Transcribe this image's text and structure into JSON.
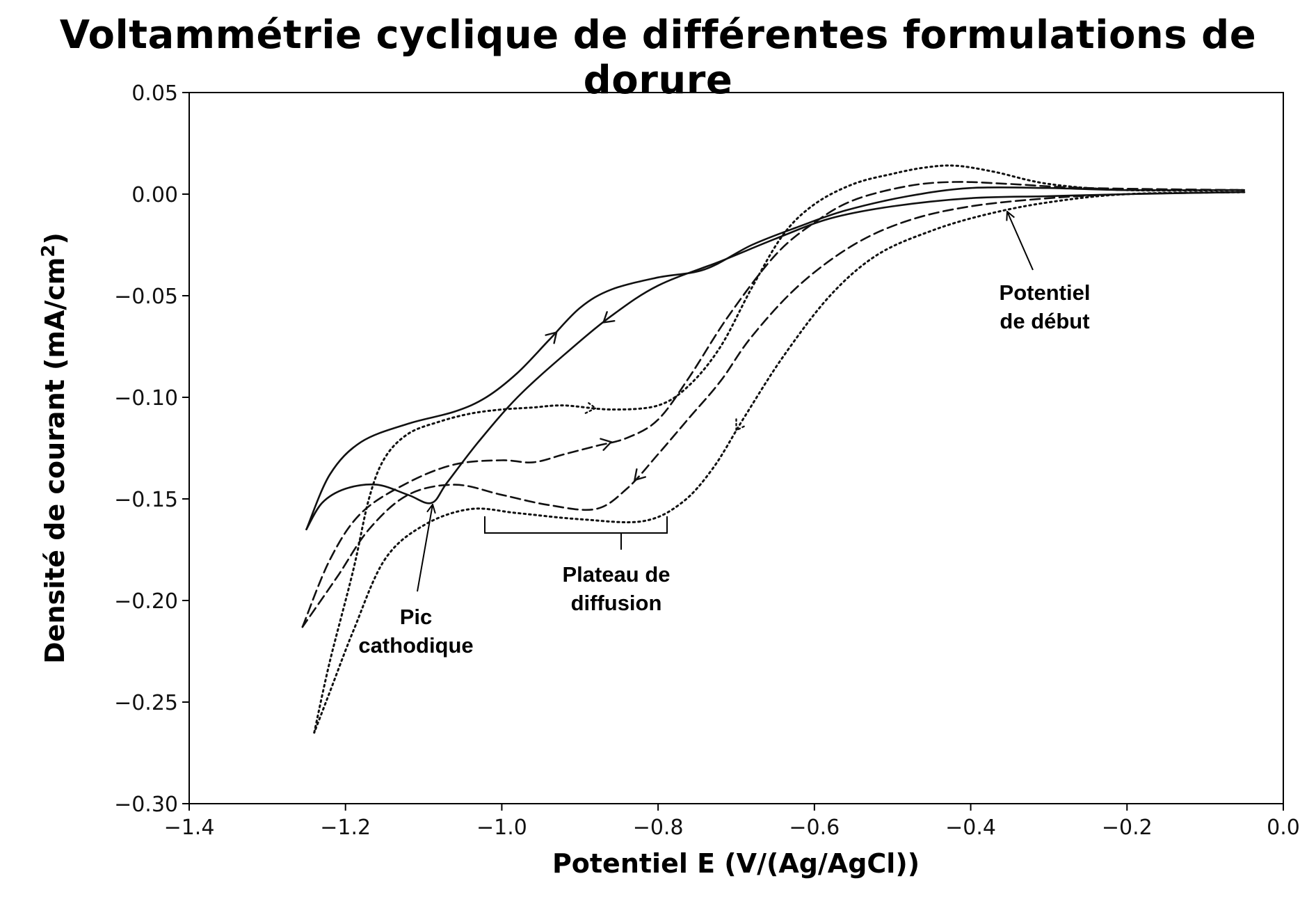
{
  "chart_data": {
    "type": "line",
    "title": "Voltammétrie cyclique de différentes formulations de dorure",
    "xlabel": "Potentiel E (V/(Ag/AgCl))",
    "ylabel_main": "Densité de courant  (mA/cm",
    "ylabel_sup": "2",
    "ylabel_end": ")",
    "xlim": [
      -1.4,
      0.0
    ],
    "ylim": [
      -0.3,
      0.05
    ],
    "x_ticks": [
      -1.4,
      -1.2,
      -1.0,
      -0.8,
      -0.6,
      -0.4,
      -0.2,
      0.0
    ],
    "x_tick_labels": [
      "−1.4",
      "−1.2",
      "−1.0",
      "−0.8",
      "−0.6",
      "−0.4",
      "−0.2",
      "0.0"
    ],
    "y_ticks": [
      0.05,
      0.0,
      -0.05,
      -0.1,
      -0.15,
      -0.2,
      -0.25,
      -0.3
    ],
    "y_tick_labels": [
      "0.05",
      "0.00",
      "−0.05",
      "−0.10",
      "−0.15",
      "−0.20",
      "−0.25",
      "−0.30"
    ],
    "grid": false,
    "legend": "none",
    "series": [
      {
        "style": "solid",
        "forward": [
          [
            -0.05,
            0.001
          ],
          [
            -0.2,
            0.0
          ],
          [
            -0.3,
            -0.001
          ],
          [
            -0.4,
            -0.002
          ],
          [
            -0.5,
            -0.006
          ],
          [
            -0.58,
            -0.012
          ],
          [
            -0.65,
            -0.022
          ],
          [
            -0.72,
            -0.033
          ],
          [
            -0.8,
            -0.045
          ],
          [
            -0.86,
            -0.06
          ],
          [
            -0.92,
            -0.079
          ],
          [
            -0.98,
            -0.1
          ],
          [
            -1.03,
            -0.122
          ],
          [
            -1.07,
            -0.142
          ],
          [
            -1.09,
            -0.152
          ],
          [
            -1.12,
            -0.148
          ],
          [
            -1.16,
            -0.143
          ],
          [
            -1.2,
            -0.145
          ],
          [
            -1.23,
            -0.152
          ],
          [
            -1.25,
            -0.165
          ]
        ],
        "reverse": [
          [
            -1.25,
            -0.165
          ],
          [
            -1.22,
            -0.138
          ],
          [
            -1.18,
            -0.122
          ],
          [
            -1.12,
            -0.113
          ],
          [
            -1.06,
            -0.107
          ],
          [
            -1.02,
            -0.1
          ],
          [
            -0.98,
            -0.088
          ],
          [
            -0.94,
            -0.072
          ],
          [
            -0.9,
            -0.056
          ],
          [
            -0.86,
            -0.047
          ],
          [
            -0.8,
            -0.041
          ],
          [
            -0.74,
            -0.037
          ],
          [
            -0.68,
            -0.025
          ],
          [
            -0.62,
            -0.016
          ],
          [
            -0.56,
            -0.008
          ],
          [
            -0.48,
            -0.001
          ],
          [
            -0.4,
            0.003
          ],
          [
            -0.3,
            0.003
          ],
          [
            -0.2,
            0.002
          ],
          [
            -0.05,
            0.002
          ]
        ]
      },
      {
        "style": "dashed",
        "forward": [
          [
            -0.05,
            0.001
          ],
          [
            -0.2,
            0.0
          ],
          [
            -0.3,
            -0.002
          ],
          [
            -0.4,
            -0.006
          ],
          [
            -0.48,
            -0.013
          ],
          [
            -0.55,
            -0.025
          ],
          [
            -0.62,
            -0.045
          ],
          [
            -0.68,
            -0.07
          ],
          [
            -0.72,
            -0.092
          ],
          [
            -0.76,
            -0.11
          ],
          [
            -0.8,
            -0.128
          ],
          [
            -0.84,
            -0.145
          ],
          [
            -0.88,
            -0.155
          ],
          [
            -0.94,
            -0.153
          ],
          [
            -1.0,
            -0.148
          ],
          [
            -1.06,
            -0.143
          ],
          [
            -1.12,
            -0.148
          ],
          [
            -1.17,
            -0.165
          ],
          [
            -1.21,
            -0.188
          ],
          [
            -1.255,
            -0.213
          ]
        ],
        "reverse": [
          [
            -1.255,
            -0.213
          ],
          [
            -1.22,
            -0.18
          ],
          [
            -1.18,
            -0.157
          ],
          [
            -1.12,
            -0.142
          ],
          [
            -1.06,
            -0.133
          ],
          [
            -1.0,
            -0.131
          ],
          [
            -0.96,
            -0.132
          ],
          [
            -0.92,
            -0.128
          ],
          [
            -0.88,
            -0.124
          ],
          [
            -0.84,
            -0.12
          ],
          [
            -0.8,
            -0.111
          ],
          [
            -0.76,
            -0.09
          ],
          [
            -0.71,
            -0.06
          ],
          [
            -0.65,
            -0.03
          ],
          [
            -0.6,
            -0.014
          ],
          [
            -0.55,
            -0.003
          ],
          [
            -0.48,
            0.004
          ],
          [
            -0.42,
            0.006
          ],
          [
            -0.35,
            0.005
          ],
          [
            -0.25,
            0.003
          ],
          [
            -0.05,
            0.002
          ]
        ]
      },
      {
        "style": "dotted",
        "forward": [
          [
            -0.05,
            0.001
          ],
          [
            -0.2,
            0.0
          ],
          [
            -0.3,
            -0.004
          ],
          [
            -0.38,
            -0.01
          ],
          [
            -0.45,
            -0.018
          ],
          [
            -0.52,
            -0.03
          ],
          [
            -0.58,
            -0.05
          ],
          [
            -0.64,
            -0.08
          ],
          [
            -0.69,
            -0.11
          ],
          [
            -0.73,
            -0.135
          ],
          [
            -0.77,
            -0.152
          ],
          [
            -0.82,
            -0.161
          ],
          [
            -0.9,
            -0.16
          ],
          [
            -0.98,
            -0.157
          ],
          [
            -1.04,
            -0.155
          ],
          [
            -1.1,
            -0.163
          ],
          [
            -1.15,
            -0.18
          ],
          [
            -1.19,
            -0.215
          ],
          [
            -1.22,
            -0.245
          ],
          [
            -1.24,
            -0.265
          ]
        ],
        "reverse": [
          [
            -1.24,
            -0.265
          ],
          [
            -1.22,
            -0.23
          ],
          [
            -1.19,
            -0.185
          ],
          [
            -1.17,
            -0.15
          ],
          [
            -1.15,
            -0.13
          ],
          [
            -1.12,
            -0.118
          ],
          [
            -1.08,
            -0.112
          ],
          [
            -1.04,
            -0.108
          ],
          [
            -1.0,
            -0.106
          ],
          [
            -0.96,
            -0.105
          ],
          [
            -0.92,
            -0.104
          ],
          [
            -0.86,
            -0.106
          ],
          [
            -0.8,
            -0.104
          ],
          [
            -0.76,
            -0.094
          ],
          [
            -0.72,
            -0.075
          ],
          [
            -0.68,
            -0.046
          ],
          [
            -0.64,
            -0.02
          ],
          [
            -0.6,
            -0.005
          ],
          [
            -0.55,
            0.005
          ],
          [
            -0.5,
            0.01
          ],
          [
            -0.46,
            0.013
          ],
          [
            -0.42,
            0.014
          ],
          [
            -0.37,
            0.011
          ],
          [
            -0.3,
            0.005
          ],
          [
            -0.2,
            0.002
          ],
          [
            -0.05,
            0.002
          ]
        ]
      }
    ],
    "annotations": {
      "onset": [
        "Potentiel",
        "de début"
      ],
      "plateau": [
        "Plateau de",
        "diffusion"
      ],
      "peak": [
        "Pic",
        "cathodique"
      ]
    }
  }
}
